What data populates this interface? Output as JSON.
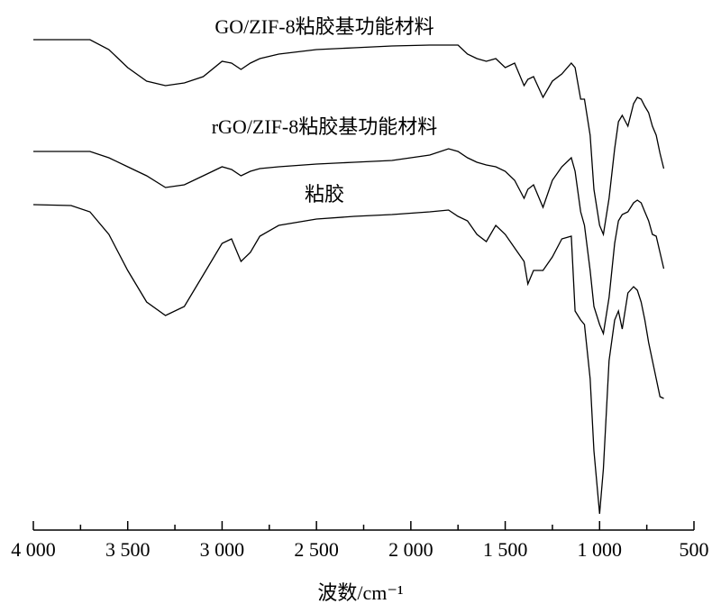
{
  "chart_data": {
    "type": "line",
    "x_label": "波数/cm⁻¹",
    "xlim": [
      4000,
      500
    ],
    "ylim": [
      0,
      568
    ],
    "xticks": [
      {
        "value": 4000,
        "label": "4 000"
      },
      {
        "value": 3500,
        "label": "3 500"
      },
      {
        "value": 3000,
        "label": "3 000"
      },
      {
        "value": 2500,
        "label": "2 500"
      },
      {
        "value": 2000,
        "label": "2 000"
      },
      {
        "value": 1500,
        "label": "1 500"
      },
      {
        "value": 1000,
        "label": "1 000"
      },
      500
    ],
    "xminor_ticks": [
      3750,
      3250,
      2750,
      2250,
      1750,
      1250,
      750
    ],
    "x": [
      4000,
      3800,
      3700,
      3600,
      3500,
      3400,
      3300,
      3200,
      3100,
      3000,
      2950,
      2900,
      2850,
      2800,
      2700,
      2500,
      2300,
      2100,
      1900,
      1800,
      1750,
      1700,
      1650,
      1600,
      1550,
      1500,
      1450,
      1400,
      1380,
      1350,
      1300,
      1250,
      1200,
      1150,
      1130,
      1100,
      1080,
      1050,
      1030,
      1000,
      980,
      950,
      920,
      900,
      880,
      850,
      820,
      800,
      780,
      760,
      740,
      720,
      700,
      680,
      660
    ],
    "series": [
      {
        "name": "GO/ZIF-8粘胶基功能材料",
        "color": "#000000",
        "values": [
          544,
          544,
          544,
          533,
          513,
          498,
          493,
          496,
          503,
          520,
          518,
          511,
          518,
          523,
          528,
          533,
          535,
          537,
          538,
          538,
          538,
          528,
          523,
          520,
          523,
          513,
          518,
          493,
          500,
          503,
          480,
          498,
          506,
          518,
          513,
          478,
          478,
          438,
          378,
          338,
          328,
          368,
          423,
          453,
          460,
          448,
          473,
          480,
          478,
          470,
          463,
          448,
          438,
          418,
          401
        ]
      },
      {
        "name": "rGO/ZIF-8粘胶基功能材料",
        "color": "#000000",
        "values": [
          420,
          420,
          420,
          413,
          403,
          393,
          380,
          383,
          393,
          403,
          400,
          393,
          398,
          401,
          403,
          406,
          408,
          410,
          416,
          423,
          420,
          413,
          408,
          405,
          403,
          398,
          388,
          368,
          378,
          383,
          358,
          388,
          403,
          413,
          398,
          353,
          338,
          288,
          248,
          228,
          218,
          258,
          318,
          343,
          350,
          353,
          363,
          366,
          363,
          353,
          343,
          328,
          326,
          308,
          290
        ]
      },
      {
        "name": "粘胶",
        "color": "#000000",
        "values": [
          361,
          360,
          353,
          328,
          288,
          253,
          238,
          248,
          283,
          318,
          323,
          298,
          308,
          326,
          338,
          345,
          348,
          350,
          353,
          355,
          348,
          343,
          328,
          320,
          338,
          328,
          313,
          298,
          273,
          288,
          288,
          303,
          323,
          326,
          243,
          233,
          228,
          168,
          88,
          18,
          68,
          188,
          233,
          243,
          223,
          263,
          270,
          266,
          253,
          233,
          208,
          188,
          168,
          148,
          146
        ]
      }
    ]
  }
}
